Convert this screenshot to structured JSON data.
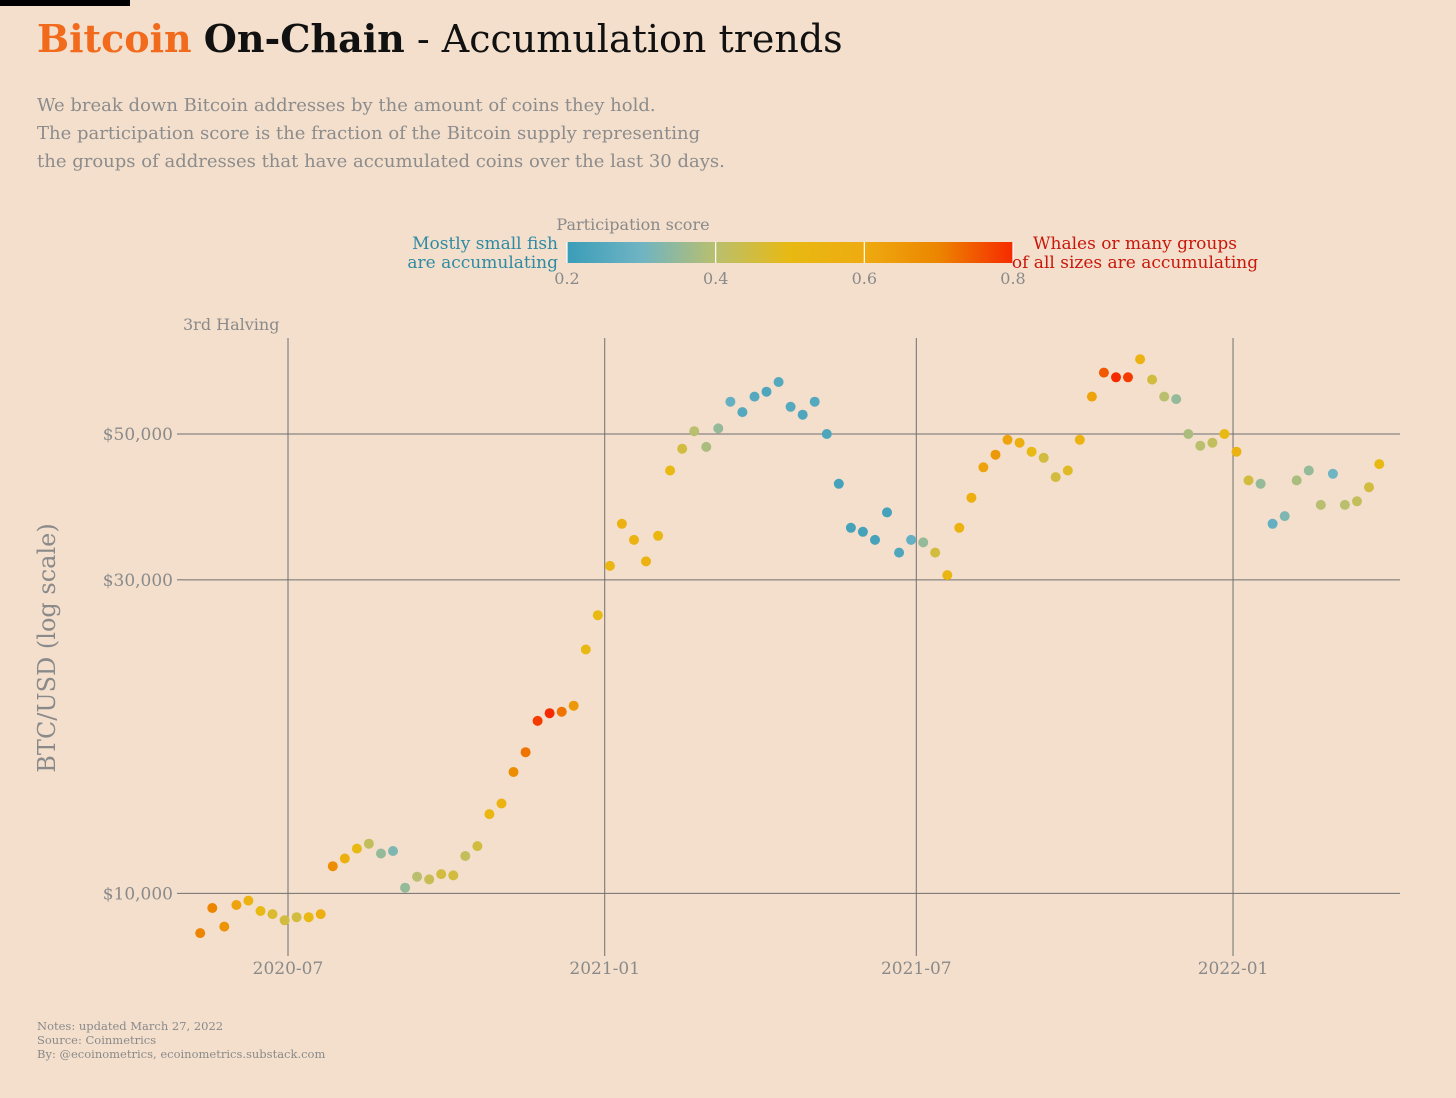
{
  "header": {
    "title_brand": "Bitcoin",
    "title_brand2": "On-Chain",
    "title_rest": " - Accumulation trends",
    "subtitle_lines": [
      "We break down Bitcoin addresses by the amount of coins they hold.",
      "The participation score is the fraction of the Bitcoin supply representing",
      "the groups of addresses that have accumulated coins over the last 30 days."
    ]
  },
  "legend": {
    "title": "Participation score",
    "left_label": [
      "Mostly small fish",
      "are accumulating"
    ],
    "right_label": [
      "Whales or many groups",
      "of all sizes are accumulating"
    ],
    "ticks": [
      0.2,
      0.4,
      0.6,
      0.8
    ],
    "tick_labels": [
      "0.2",
      "0.4",
      "0.6",
      "0.8"
    ],
    "left_label_color": "#2f8ba3",
    "right_label_color": "#c8180b",
    "gradient_stops": [
      {
        "score": 0.2,
        "color": "#3a9db8"
      },
      {
        "score": 0.3,
        "color": "#6fb4c3"
      },
      {
        "score": 0.4,
        "color": "#b9bf6e"
      },
      {
        "score": 0.5,
        "color": "#e8b912"
      },
      {
        "score": 0.6,
        "color": "#eeab10"
      },
      {
        "score": 0.7,
        "color": "#ec8500"
      },
      {
        "score": 0.8,
        "color": "#f62a00"
      }
    ]
  },
  "footer": {
    "notes_lines": [
      "Notes: updated March 27, 2022",
      "Source: Coinmetrics",
      "By: @ecoinometrics, ecoinometrics.substack.com"
    ]
  },
  "chart_data": {
    "type": "scatter",
    "title": "Bitcoin On-Chain - Accumulation trends",
    "xlabel": "",
    "ylabel": "BTC/USD (log scale)",
    "y_scale": "log",
    "ylim": [
      8200,
      70000
    ],
    "xlim": [
      "2020-05-01",
      "2022-04-08"
    ],
    "x_ticks": [
      "2020-07-01",
      "2021-01-01",
      "2021-07-01",
      "2022-01-01"
    ],
    "x_tick_labels": [
      "2020-07",
      "2021-01",
      "2021-07",
      "2022-01"
    ],
    "y_ticks": [
      10000,
      30000,
      50000
    ],
    "y_tick_labels": [
      "$10,000",
      "$30,000",
      "$50,000"
    ],
    "grid": true,
    "color_scale": "participation score (0.2 blue to 0.8 red)",
    "annotations": [
      {
        "text": "3rd Halving",
        "x": "2020-05-11"
      }
    ],
    "points": [
      [
        "2020-05-11",
        8700,
        0.7
      ],
      [
        "2020-05-18",
        9500,
        0.7
      ],
      [
        "2020-05-25",
        8900,
        0.66
      ],
      [
        "2020-06-01",
        9600,
        0.62
      ],
      [
        "2020-06-08",
        9750,
        0.55
      ],
      [
        "2020-06-15",
        9400,
        0.5
      ],
      [
        "2020-06-22",
        9300,
        0.47
      ],
      [
        "2020-06-29",
        9100,
        0.45
      ],
      [
        "2020-07-06",
        9200,
        0.45
      ],
      [
        "2020-07-13",
        9200,
        0.5
      ],
      [
        "2020-07-20",
        9300,
        0.58
      ],
      [
        "2020-07-27",
        11000,
        0.68
      ],
      [
        "2020-08-03",
        11300,
        0.57
      ],
      [
        "2020-08-10",
        11700,
        0.5
      ],
      [
        "2020-08-17",
        11900,
        0.42
      ],
      [
        "2020-08-24",
        11500,
        0.35
      ],
      [
        "2020-08-31",
        11600,
        0.32
      ],
      [
        "2020-09-07",
        10200,
        0.35
      ],
      [
        "2020-09-14",
        10600,
        0.4
      ],
      [
        "2020-09-21",
        10500,
        0.43
      ],
      [
        "2020-09-28",
        10700,
        0.45
      ],
      [
        "2020-10-05",
        10650,
        0.45
      ],
      [
        "2020-10-12",
        11400,
        0.42
      ],
      [
        "2020-10-19",
        11800,
        0.45
      ],
      [
        "2020-10-26",
        13200,
        0.52
      ],
      [
        "2020-11-02",
        13700,
        0.55
      ],
      [
        "2020-11-09",
        15300,
        0.68
      ],
      [
        "2020-11-16",
        16400,
        0.72
      ],
      [
        "2020-11-23",
        18300,
        0.78
      ],
      [
        "2020-11-30",
        18800,
        0.8
      ],
      [
        "2020-12-07",
        18900,
        0.72
      ],
      [
        "2020-12-14",
        19300,
        0.65
      ],
      [
        "2020-12-21",
        23500,
        0.5
      ],
      [
        "2020-12-28",
        26500,
        0.5
      ],
      [
        "2021-01-04",
        31500,
        0.52
      ],
      [
        "2021-01-11",
        36500,
        0.56
      ],
      [
        "2021-01-18",
        34500,
        0.55
      ],
      [
        "2021-01-25",
        32000,
        0.55
      ],
      [
        "2021-02-01",
        35000,
        0.52
      ],
      [
        "2021-02-08",
        44000,
        0.5
      ],
      [
        "2021-02-15",
        47500,
        0.45
      ],
      [
        "2021-02-22",
        50500,
        0.4
      ],
      [
        "2021-03-01",
        47800,
        0.38
      ],
      [
        "2021-03-08",
        51000,
        0.35
      ],
      [
        "2021-03-15",
        56000,
        0.28
      ],
      [
        "2021-03-22",
        54000,
        0.25
      ],
      [
        "2021-03-29",
        57000,
        0.25
      ],
      [
        "2021-04-05",
        58000,
        0.24
      ],
      [
        "2021-04-12",
        60000,
        0.25
      ],
      [
        "2021-04-19",
        55000,
        0.25
      ],
      [
        "2021-04-26",
        53500,
        0.24
      ],
      [
        "2021-05-03",
        56000,
        0.25
      ],
      [
        "2021-05-10",
        50000,
        0.24
      ],
      [
        "2021-05-17",
        42000,
        0.22
      ],
      [
        "2021-05-24",
        36000,
        0.22
      ],
      [
        "2021-05-31",
        35500,
        0.22
      ],
      [
        "2021-06-07",
        34500,
        0.22
      ],
      [
        "2021-06-14",
        38000,
        0.22
      ],
      [
        "2021-06-21",
        33000,
        0.24
      ],
      [
        "2021-06-28",
        34500,
        0.28
      ],
      [
        "2021-07-05",
        34200,
        0.35
      ],
      [
        "2021-07-12",
        33000,
        0.45
      ],
      [
        "2021-07-19",
        30500,
        0.52
      ],
      [
        "2021-07-26",
        36000,
        0.55
      ],
      [
        "2021-08-02",
        40000,
        0.58
      ],
      [
        "2021-08-09",
        44500,
        0.62
      ],
      [
        "2021-08-16",
        46500,
        0.65
      ],
      [
        "2021-08-23",
        49000,
        0.62
      ],
      [
        "2021-08-30",
        48500,
        0.58
      ],
      [
        "2021-09-06",
        47000,
        0.5
      ],
      [
        "2021-09-13",
        46000,
        0.45
      ],
      [
        "2021-09-20",
        43000,
        0.45
      ],
      [
        "2021-09-27",
        44000,
        0.48
      ],
      [
        "2021-10-04",
        49000,
        0.55
      ],
      [
        "2021-10-11",
        57000,
        0.62
      ],
      [
        "2021-10-18",
        62000,
        0.75
      ],
      [
        "2021-10-25",
        61000,
        0.8
      ],
      [
        "2021-11-01",
        61000,
        0.78
      ],
      [
        "2021-11-08",
        65000,
        0.55
      ],
      [
        "2021-11-15",
        60500,
        0.45
      ],
      [
        "2021-11-22",
        57000,
        0.4
      ],
      [
        "2021-11-29",
        56500,
        0.35
      ],
      [
        "2021-12-06",
        50000,
        0.38
      ],
      [
        "2021-12-13",
        48000,
        0.4
      ],
      [
        "2021-12-20",
        48500,
        0.42
      ],
      [
        "2021-12-27",
        50000,
        0.5
      ],
      [
        "2022-01-03",
        47000,
        0.55
      ],
      [
        "2022-01-10",
        42500,
        0.45
      ],
      [
        "2022-01-17",
        42000,
        0.35
      ],
      [
        "2022-01-24",
        36500,
        0.28
      ],
      [
        "2022-01-31",
        37500,
        0.32
      ],
      [
        "2022-02-07",
        42500,
        0.38
      ],
      [
        "2022-02-14",
        44000,
        0.35
      ],
      [
        "2022-02-21",
        39000,
        0.4
      ],
      [
        "2022-02-28",
        43500,
        0.3
      ],
      [
        "2022-03-07",
        39000,
        0.4
      ],
      [
        "2022-03-14",
        39500,
        0.42
      ],
      [
        "2022-03-21",
        41500,
        0.45
      ],
      [
        "2022-03-27",
        45000,
        0.5
      ]
    ]
  }
}
